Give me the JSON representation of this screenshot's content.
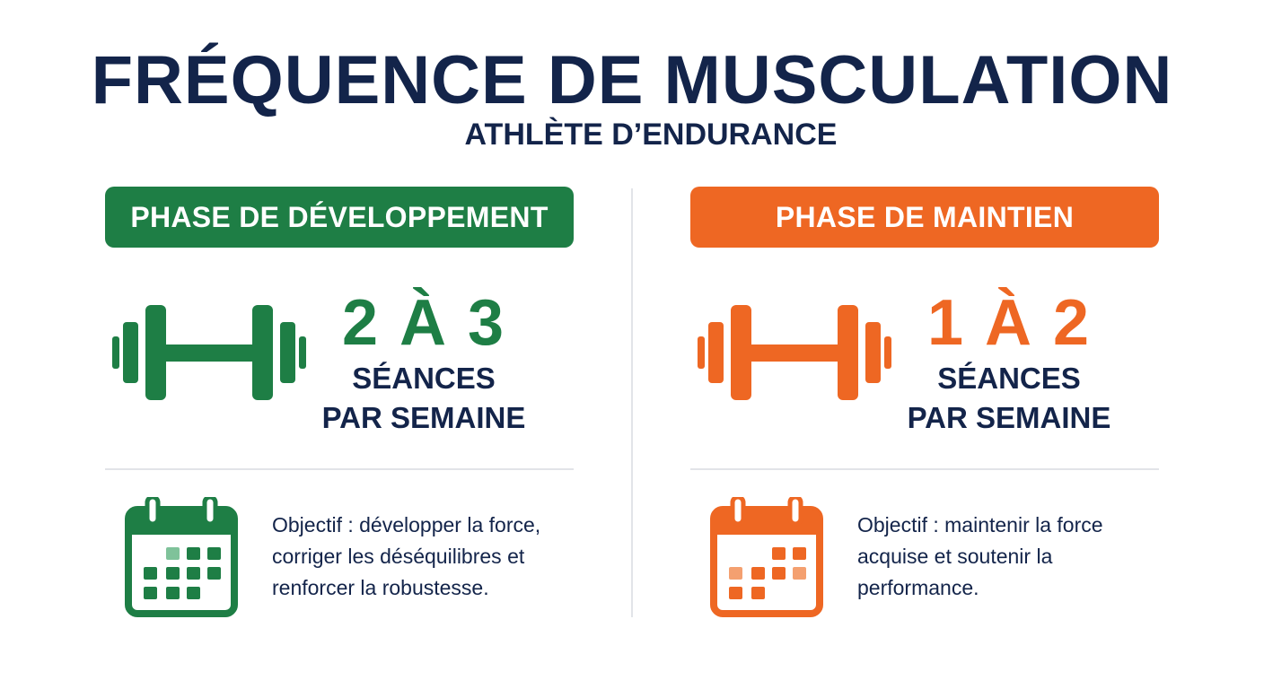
{
  "header": {
    "title": "FRÉQUENCE DE MUSCULATION",
    "subtitle": "ATHLÈTE D’ENDURANCE"
  },
  "phases": [
    {
      "label": "PHASE DE DÉVELOPPEMENT",
      "count": "2 À 3",
      "unit_line1": "SÉANCES",
      "unit_line2": "PAR SEMAINE",
      "objective": "Objectif : développer la force, corriger les déséquilibres et renforcer la robustesse.",
      "color": "#1e7e45",
      "icon": "dumbbell-icon",
      "calendar_icon": "calendar-icon"
    },
    {
      "label": "PHASE DE MAINTIEN",
      "count": "1 À 2",
      "unit_line1": "SÉANCES",
      "unit_line2": "PAR SEMAINE",
      "objective": "Objectif : maintenir la force acquise et soutenir la performance.",
      "color": "#ee6723",
      "icon": "dumbbell-icon",
      "calendar_icon": "calendar-icon"
    }
  ],
  "colors": {
    "title": "#13244a",
    "green": "#1e7e45",
    "orange": "#ee6723",
    "divider": "#e2e4e8"
  }
}
